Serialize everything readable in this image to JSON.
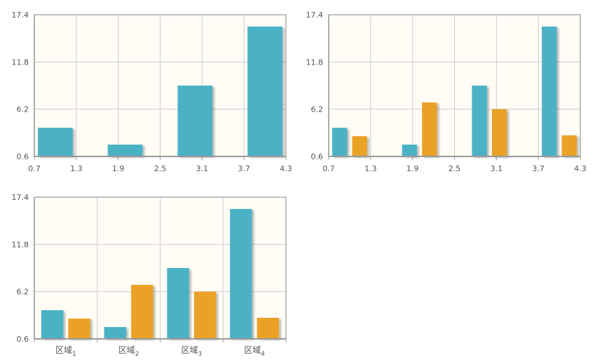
{
  "colors": {
    "series_1": "#4bb2c5",
    "series_2": "#eaa228",
    "plot_background": "#fffdf6",
    "grid": "#cccccc",
    "axis": "#999999"
  },
  "chart_data": [
    {
      "type": "bar",
      "x_axis": "numeric",
      "ylim": [
        0.6,
        17.4
      ],
      "yticks": [
        "0.6",
        "6.2",
        "11.8",
        "17.4"
      ],
      "xlim": [
        0.7,
        4.3
      ],
      "xticks": [
        "0.7",
        "1.3",
        "1.9",
        "2.5",
        "3.1",
        "3.7",
        "4.3"
      ],
      "grid": true,
      "legend": "none",
      "x": [
        1,
        2,
        3,
        4
      ],
      "series": [
        {
          "values": [
            4,
            2,
            9,
            16
          ],
          "color": "#4bb2c5"
        }
      ]
    },
    {
      "type": "bar",
      "x_axis": "numeric",
      "ylim": [
        0.6,
        17.4
      ],
      "yticks": [
        "0.6",
        "6.2",
        "11.8",
        "17.4"
      ],
      "xlim": [
        0.7,
        4.3
      ],
      "xticks": [
        "0.7",
        "1.3",
        "1.9",
        "2.5",
        "3.1",
        "3.7",
        "4.3"
      ],
      "grid": true,
      "legend": "none",
      "x": [
        1,
        2,
        3,
        4
      ],
      "series": [
        {
          "values": [
            4,
            2,
            9,
            16
          ],
          "color": "#4bb2c5"
        },
        {
          "values": [
            3,
            7,
            6.2,
            3.1
          ],
          "color": "#eaa228"
        }
      ]
    },
    {
      "type": "bar",
      "x_axis": "category",
      "ylim": [
        0.6,
        17.4
      ],
      "yticks": [
        "0.6",
        "6.2",
        "11.8",
        "17.4"
      ],
      "grid": true,
      "legend": "none",
      "categories": [
        {
          "label": "区域",
          "sub": "1"
        },
        {
          "label": "区域",
          "sub": "2"
        },
        {
          "label": "区域",
          "sub": "3"
        },
        {
          "label": "区域",
          "sub": "4"
        }
      ],
      "series": [
        {
          "values": [
            4,
            2,
            9,
            16
          ],
          "color": "#4bb2c5"
        },
        {
          "values": [
            3,
            7,
            6.2,
            3.1
          ],
          "color": "#eaa228"
        }
      ]
    }
  ]
}
